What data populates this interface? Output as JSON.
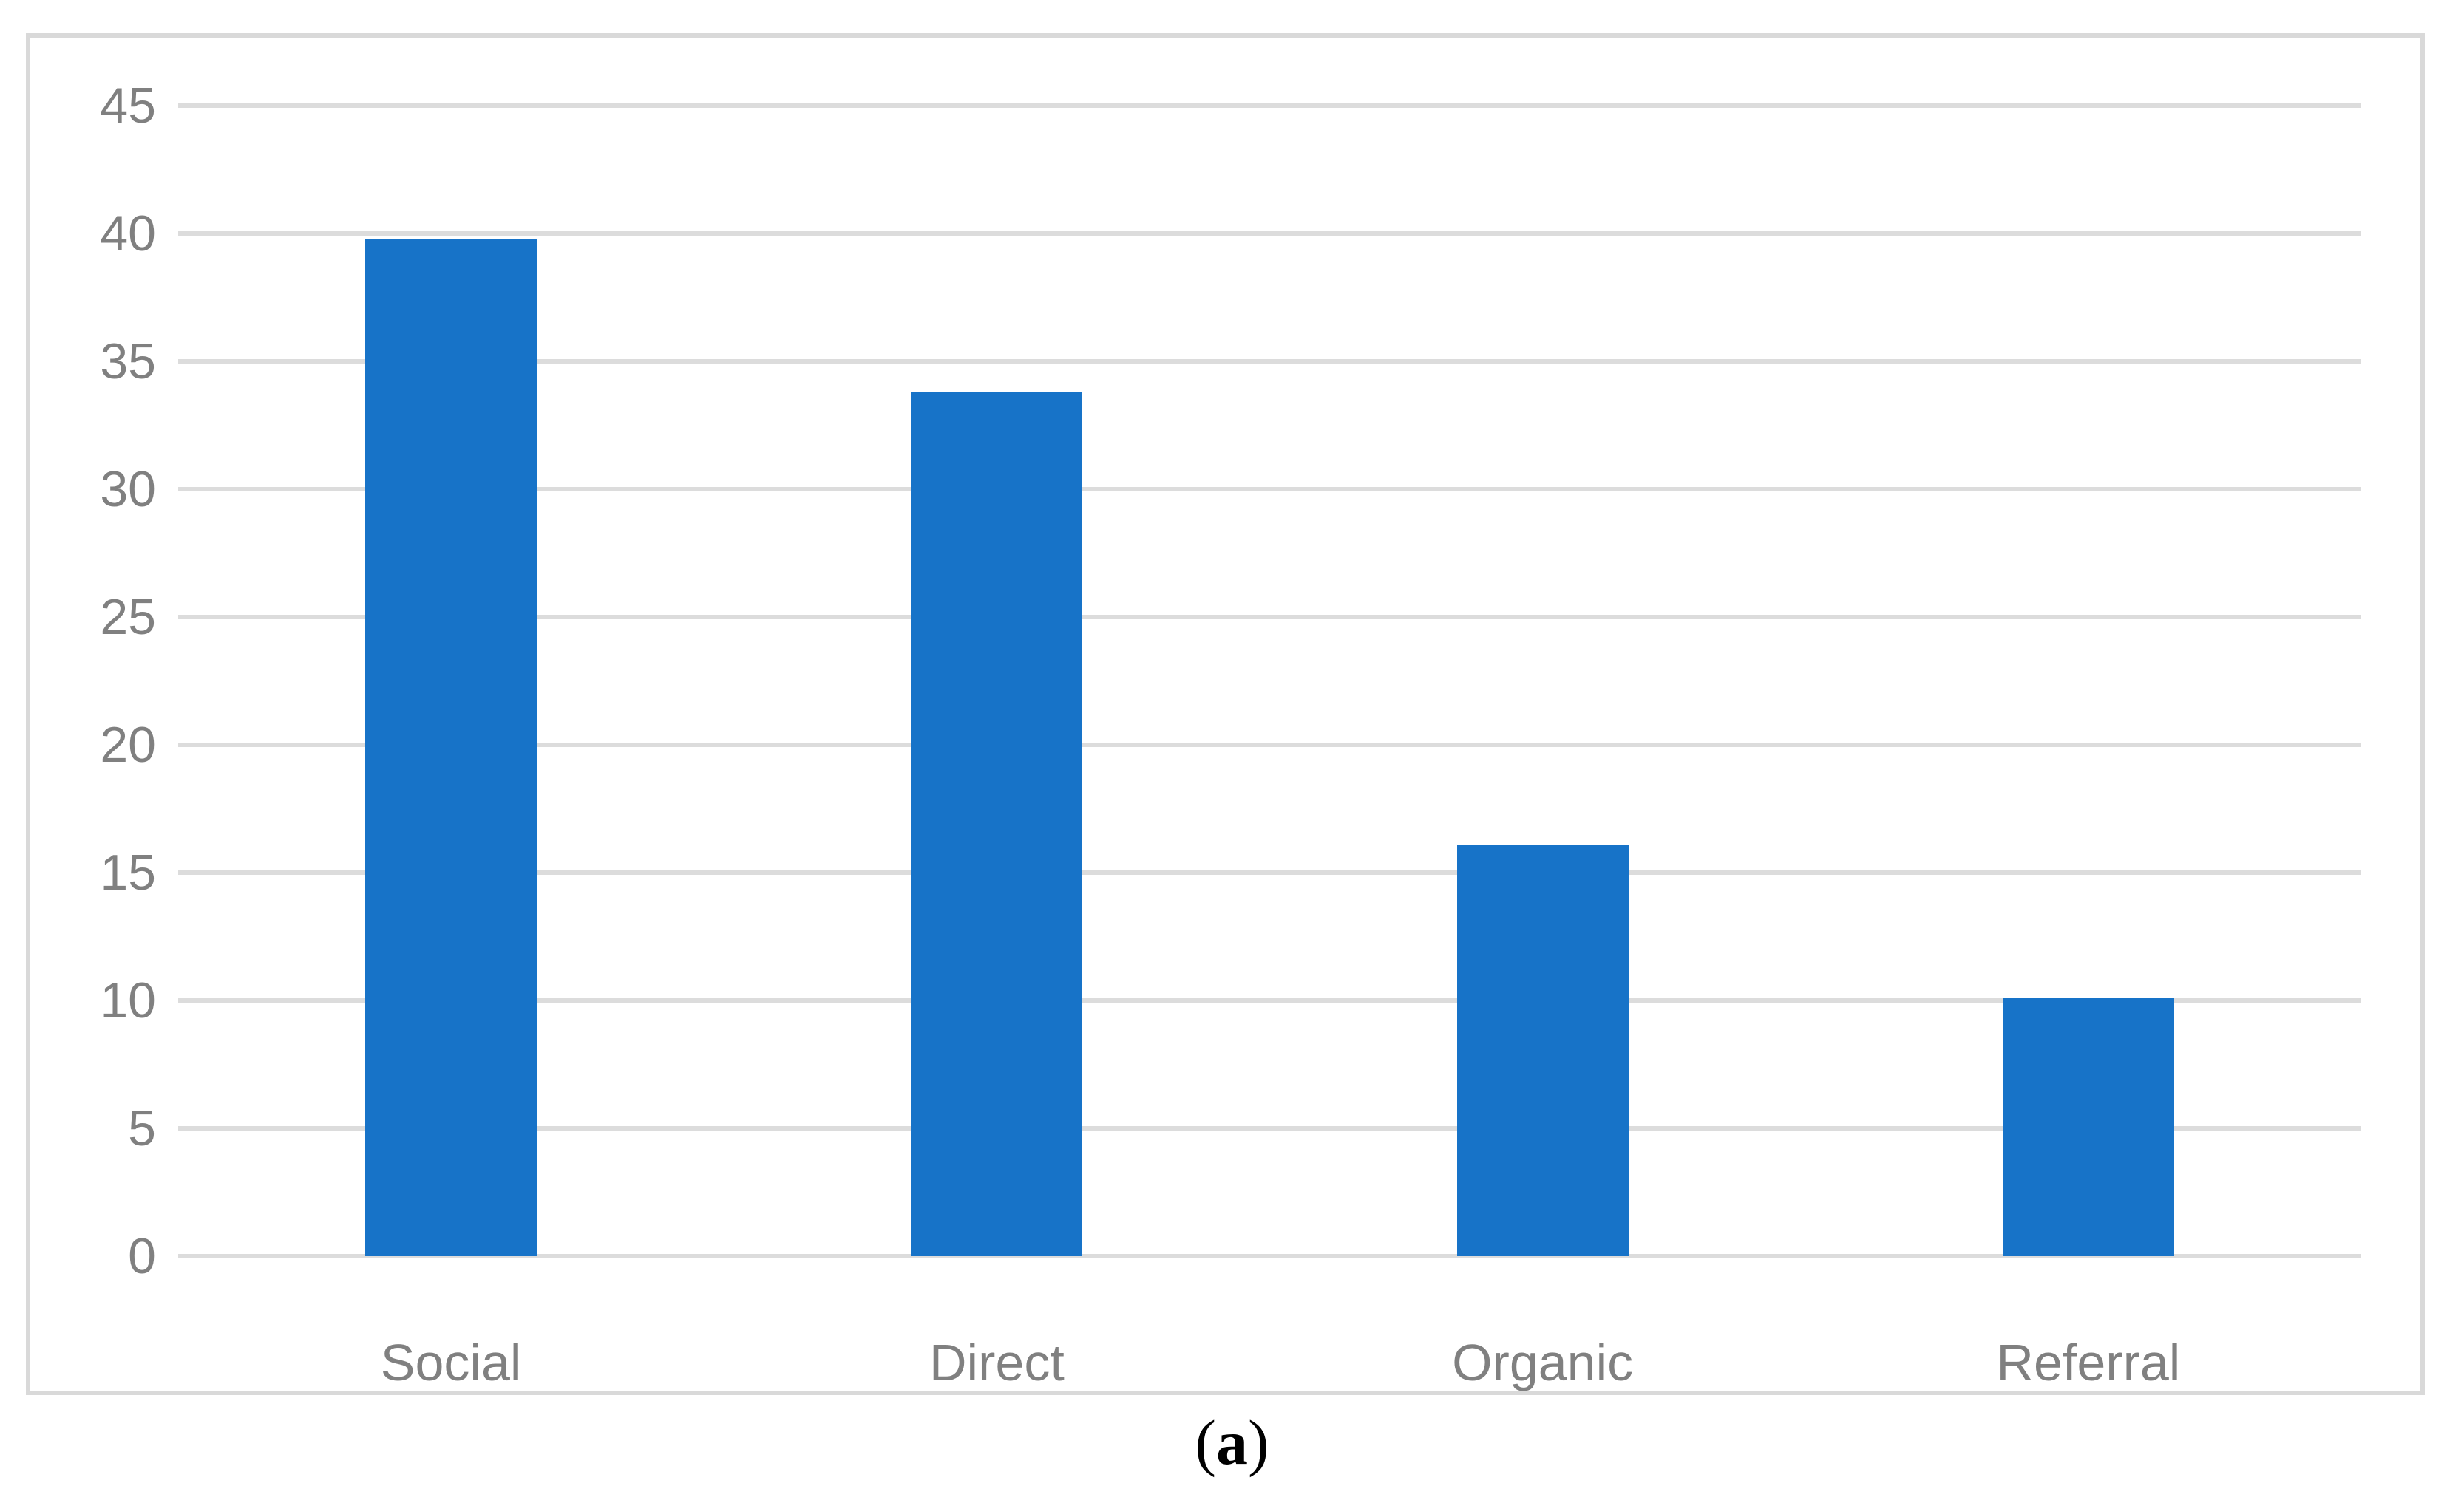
{
  "chart_data": {
    "type": "bar",
    "title": "",
    "xlabel": "",
    "ylabel": "",
    "categories": [
      "Social",
      "Direct",
      "Organic",
      "Referral"
    ],
    "values": [
      39.8,
      33.8,
      16.1,
      10.1
    ],
    "ylim": [
      0,
      45
    ],
    "ytick_step": 5,
    "yticks": [
      "0",
      "5",
      "10",
      "15",
      "20",
      "25",
      "30",
      "35",
      "40",
      "45"
    ],
    "grid": "horizontal gridlines on",
    "legend": "none",
    "bar_color": "#1773c8",
    "gridline_color": "#dcdcdc",
    "axis_text_color": "#808080",
    "frame_color": "#d9d9d9"
  },
  "caption": {
    "open": "(",
    "label": "a",
    "close": ")"
  }
}
